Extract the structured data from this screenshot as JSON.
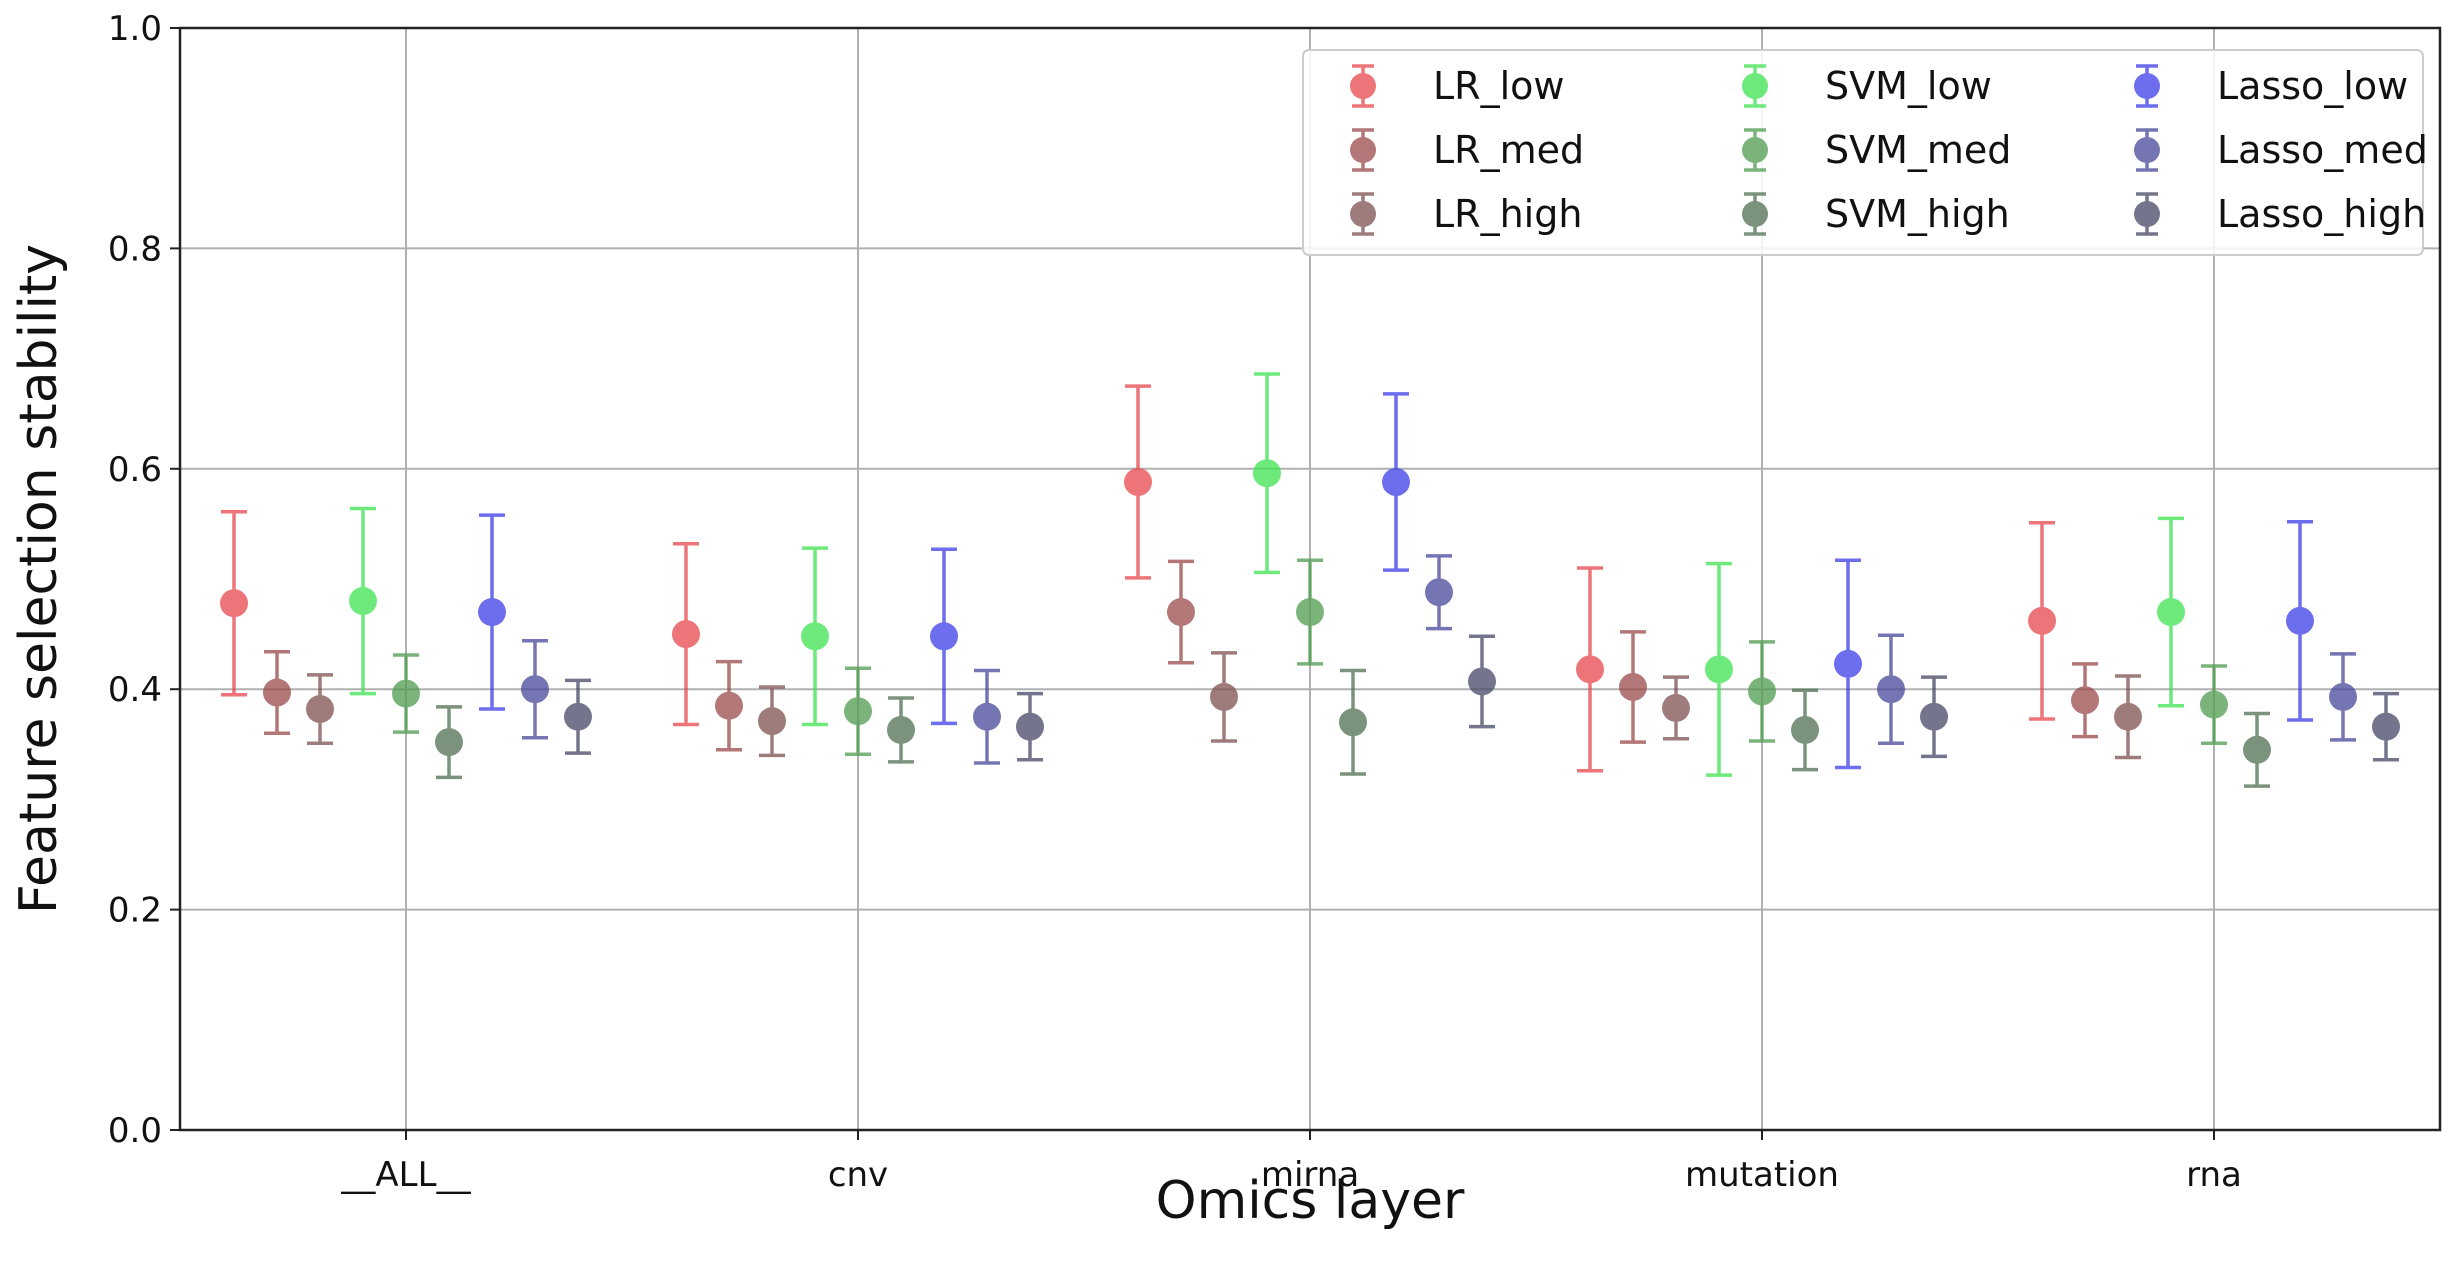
{
  "chart_data": {
    "type": "scatter",
    "subtype": "errorbar",
    "title": "",
    "xlabel": "Omics layer",
    "ylabel": "Feature selection stability",
    "categories": [
      "__ALL__",
      "cnv",
      "mirna",
      "mutation",
      "rna"
    ],
    "ylim": [
      0.0,
      1.0
    ],
    "yticks": [
      "0.0",
      "0.2",
      "0.4",
      "0.6",
      "0.8",
      "1.0"
    ],
    "grid": true,
    "legend_position": "top-right",
    "series": [
      {
        "name": "LR_low",
        "color": "#e8474d",
        "values": [
          0.478,
          0.45,
          0.588,
          0.418,
          0.462
        ],
        "err": [
          0.083,
          0.082,
          0.087,
          0.092,
          0.089
        ]
      },
      {
        "name": "LR_med",
        "color": "#9b4a4a",
        "values": [
          0.397,
          0.385,
          0.47,
          0.402,
          0.39
        ],
        "err": [
          0.037,
          0.04,
          0.046,
          0.05,
          0.033
        ]
      },
      {
        "name": "LR_high",
        "color": "#7e5151",
        "values": [
          0.382,
          0.371,
          0.393,
          0.383,
          0.375
        ],
        "err": [
          0.031,
          0.031,
          0.04,
          0.028,
          0.037
        ]
      },
      {
        "name": "SVM_low",
        "color": "#3de44f",
        "values": [
          0.48,
          0.448,
          0.596,
          0.418,
          0.47
        ],
        "err": [
          0.084,
          0.08,
          0.09,
          0.096,
          0.085
        ]
      },
      {
        "name": "SVM_med",
        "color": "#4e9c4e",
        "values": [
          0.396,
          0.38,
          0.47,
          0.398,
          0.386
        ],
        "err": [
          0.035,
          0.039,
          0.047,
          0.045,
          0.035
        ]
      },
      {
        "name": "SVM_high",
        "color": "#4f7051",
        "values": [
          0.352,
          0.363,
          0.37,
          0.363,
          0.345
        ],
        "err": [
          0.032,
          0.029,
          0.047,
          0.036,
          0.033
        ]
      },
      {
        "name": "Lasso_low",
        "color": "#3b3ee8",
        "values": [
          0.47,
          0.448,
          0.588,
          0.423,
          0.462
        ],
        "err": [
          0.088,
          0.079,
          0.08,
          0.094,
          0.09
        ]
      },
      {
        "name": "Lasso_med",
        "color": "#48489b",
        "values": [
          0.4,
          0.375,
          0.488,
          0.4,
          0.393
        ],
        "err": [
          0.044,
          0.042,
          0.033,
          0.049,
          0.039
        ]
      },
      {
        "name": "Lasso_high",
        "color": "#464866",
        "values": [
          0.375,
          0.366,
          0.407,
          0.375,
          0.366
        ],
        "err": [
          0.033,
          0.03,
          0.041,
          0.036,
          0.03
        ]
      }
    ]
  }
}
